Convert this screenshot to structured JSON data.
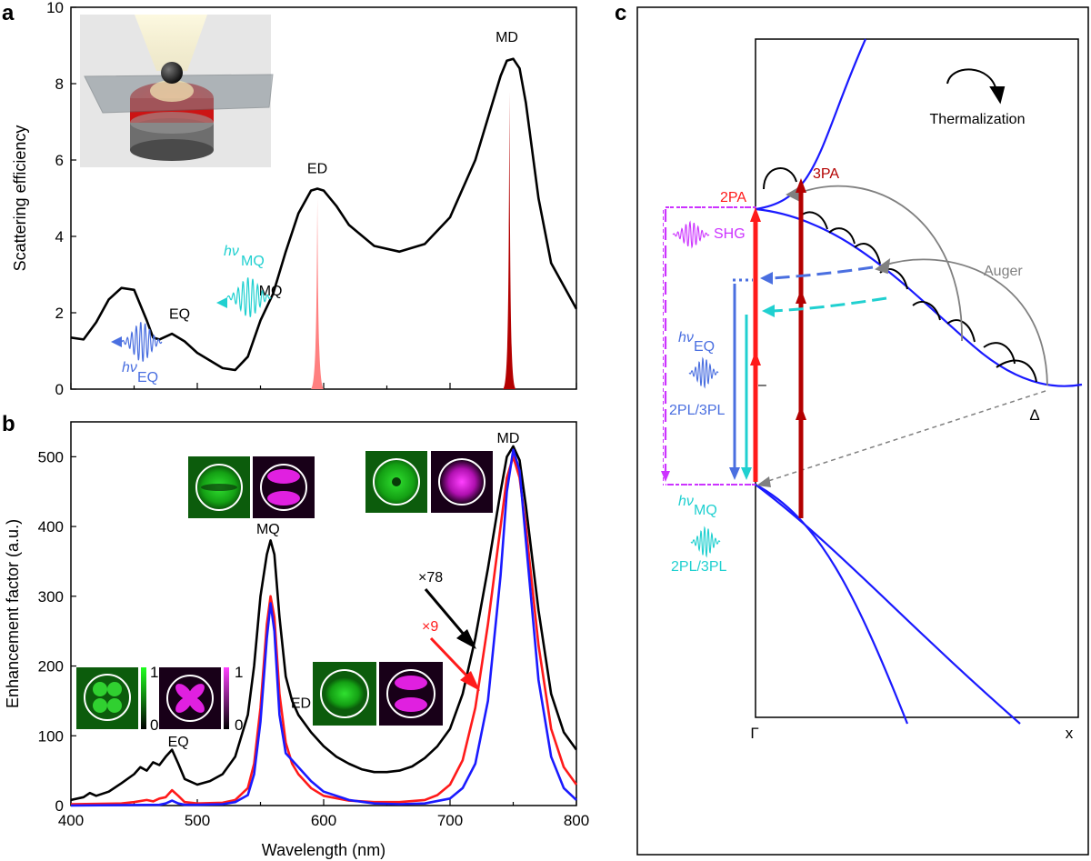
{
  "panels": {
    "a": "a",
    "b": "b",
    "c": "c"
  },
  "colors": {
    "black": "#000000",
    "red": "#ff1a1a",
    "blue": "#1a1aff",
    "darkred": "#b30000",
    "pinkpeak": "#ff8080",
    "eq_wave": "#4a6fe0",
    "mq_wave": "#20d0d0",
    "magenta": "#cc33ff",
    "gray": "#808080",
    "green": "#17b317"
  },
  "chart_data": [
    {
      "type": "line",
      "panel": "a",
      "xlim": [
        400,
        800
      ],
      "ylim": [
        0,
        10
      ],
      "yticks": [
        "0",
        "2",
        "4",
        "6",
        "8",
        "10"
      ],
      "ylabel": "Scattering efficiency",
      "series": [
        {
          "color": "black",
          "x": [
            400,
            410,
            420,
            430,
            440,
            450,
            460,
            465,
            470,
            480,
            490,
            500,
            510,
            520,
            530,
            540,
            550,
            560,
            570,
            580,
            590,
            595,
            600,
            610,
            620,
            640,
            660,
            680,
            700,
            720,
            730,
            740,
            745,
            750,
            755,
            760,
            770,
            780,
            800
          ],
          "y": [
            1.35,
            1.3,
            1.75,
            2.35,
            2.65,
            2.6,
            1.8,
            1.35,
            1.3,
            1.45,
            1.25,
            0.95,
            0.75,
            0.55,
            0.5,
            0.85,
            1.8,
            2.5,
            3.6,
            4.6,
            5.2,
            5.25,
            5.2,
            4.8,
            4.3,
            3.75,
            3.6,
            3.8,
            4.5,
            6.0,
            7.1,
            8.2,
            8.6,
            8.65,
            8.4,
            7.5,
            5.0,
            3.3,
            2.1
          ]
        }
      ],
      "peaks": [
        {
          "x": 595,
          "height": 5.0,
          "color": "pinkpeak"
        },
        {
          "x": 747,
          "height": 7.8,
          "color": "darkred"
        }
      ],
      "labels": [
        {
          "text": "MD",
          "x": 745,
          "y": 9.1
        },
        {
          "text": "ED",
          "x": 595,
          "y": 5.65
        },
        {
          "text": "MQ",
          "x": 558,
          "y": 2.45
        },
        {
          "text": "EQ",
          "x": 486,
          "y": 1.85
        }
      ],
      "emission": [
        {
          "sym": "hν",
          "sub": "MQ",
          "color": "mq_wave"
        },
        {
          "sym": "hν",
          "sub": "EQ",
          "color": "eq_wave"
        }
      ]
    },
    {
      "type": "line",
      "panel": "b",
      "xlim": [
        400,
        800
      ],
      "ylim": [
        0,
        550
      ],
      "xticks": [
        "400",
        "500",
        "600",
        "700",
        "800"
      ],
      "yticks": [
        "0",
        "100",
        "200",
        "300",
        "400",
        "500"
      ],
      "xlabel": "Wavelength (nm)",
      "ylabel": "Enhancement factor (a.u.)",
      "series": [
        {
          "color": "black",
          "x": [
            400,
            410,
            415,
            420,
            430,
            440,
            450,
            455,
            460,
            465,
            470,
            475,
            480,
            485,
            490,
            500,
            510,
            520,
            530,
            540,
            545,
            550,
            555,
            558,
            561,
            565,
            570,
            575,
            580,
            590,
            600,
            610,
            620,
            630,
            640,
            650,
            660,
            670,
            680,
            690,
            700,
            710,
            720,
            730,
            740,
            745,
            750,
            755,
            760,
            770,
            780,
            790,
            800
          ],
          "y": [
            8,
            12,
            18,
            14,
            20,
            32,
            45,
            55,
            50,
            62,
            58,
            70,
            80,
            60,
            38,
            30,
            35,
            45,
            70,
            130,
            200,
            300,
            360,
            380,
            360,
            270,
            185,
            150,
            130,
            105,
            85,
            70,
            60,
            52,
            48,
            48,
            50,
            56,
            68,
            85,
            110,
            160,
            240,
            340,
            450,
            500,
            515,
            495,
            430,
            280,
            160,
            105,
            80
          ]
        },
        {
          "color": "red",
          "x": [
            400,
            440,
            450,
            460,
            465,
            470,
            475,
            480,
            485,
            490,
            500,
            520,
            530,
            540,
            545,
            550,
            555,
            558,
            561,
            565,
            570,
            575,
            580,
            590,
            600,
            620,
            640,
            660,
            680,
            690,
            700,
            710,
            720,
            730,
            740,
            745,
            750,
            755,
            760,
            770,
            780,
            790,
            800
          ],
          "y": [
            2,
            3,
            5,
            8,
            6,
            10,
            12,
            22,
            14,
            5,
            3,
            4,
            8,
            25,
            60,
            140,
            260,
            300,
            270,
            160,
            90,
            60,
            45,
            25,
            14,
            7,
            5,
            5,
            8,
            15,
            30,
            65,
            140,
            260,
            400,
            470,
            500,
            470,
            400,
            230,
            110,
            55,
            30
          ]
        },
        {
          "color": "blue",
          "x": [
            400,
            470,
            475,
            480,
            485,
            490,
            500,
            520,
            530,
            540,
            545,
            550,
            555,
            558,
            561,
            565,
            570,
            575,
            580,
            590,
            600,
            620,
            640,
            660,
            680,
            700,
            710,
            720,
            730,
            740,
            745,
            750,
            755,
            760,
            770,
            780,
            790,
            800
          ],
          "y": [
            0,
            1,
            3,
            7,
            3,
            1,
            1,
            2,
            5,
            15,
            45,
            120,
            240,
            290,
            250,
            130,
            75,
            65,
            55,
            35,
            20,
            8,
            3,
            2,
            3,
            10,
            25,
            60,
            150,
            330,
            450,
            510,
            480,
            380,
            180,
            70,
            25,
            8
          ]
        }
      ],
      "labels": [
        {
          "text": "MD",
          "x": 746,
          "y": 520
        },
        {
          "text": "MQ",
          "x": 556,
          "y": 390
        },
        {
          "text": "ED",
          "x": 582,
          "y": 140
        },
        {
          "text": "EQ",
          "x": 485,
          "y": 85
        }
      ],
      "factors": [
        {
          "text": "×78",
          "color": "black"
        },
        {
          "text": "×9",
          "color": "red"
        }
      ],
      "colorbars": [
        {
          "top": "1",
          "bottom": "0"
        },
        {
          "top": "1",
          "bottom": "0"
        }
      ]
    }
  ],
  "panel_c": {
    "labels": {
      "thermalization": "Thermalization",
      "twoPA": "2PA",
      "threePA": "3PA",
      "shg": "SHG",
      "auger": "Auger",
      "hv_eq_sym": "hν",
      "hv_eq_sub": "EQ",
      "pl_blue": "2PL/3PL",
      "hv_mq_sym": "hν",
      "hv_mq_sub": "MQ",
      "pl_cyan": "2PL/3PL",
      "gamma": "Γ",
      "x": "x",
      "delta": "Δ",
      "minus": "–"
    }
  }
}
